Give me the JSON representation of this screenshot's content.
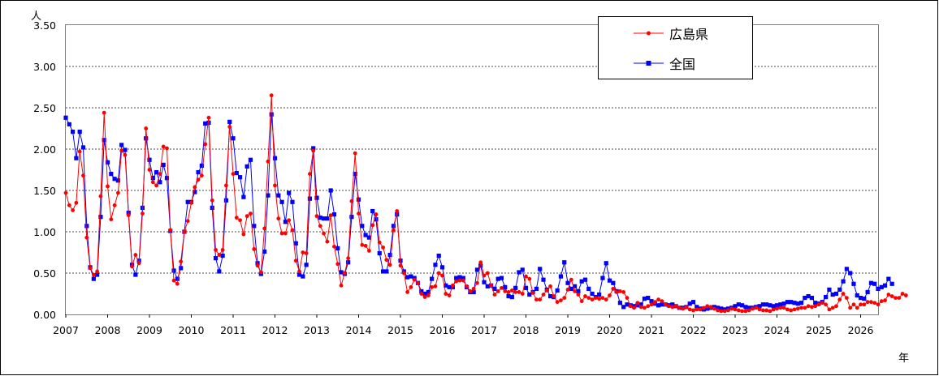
{
  "chart_data": {
    "type": "line",
    "y_unit_label": "人",
    "x_unit_label": "年",
    "ylim": [
      0,
      3.5
    ],
    "y_ticks": [
      "0.00",
      "0.50",
      "1.00",
      "1.50",
      "2.00",
      "2.50",
      "3.00",
      "3.50"
    ],
    "x_ticks": [
      "2007",
      "2008",
      "2009",
      "2010",
      "2011",
      "2012",
      "2013",
      "2014",
      "2015",
      "2016",
      "2017",
      "2018",
      "2019",
      "2020",
      "2021",
      "2022",
      "2023",
      "2024",
      "2025",
      "2026"
    ],
    "x_start": "2007-01",
    "grid": "horizontal dotted",
    "legend_position": "top-right",
    "series": [
      {
        "name": "広島県",
        "color": "#ff0000",
        "marker": "circle",
        "values": [
          1.47,
          1.32,
          1.26,
          1.35,
          1.97,
          1.68,
          0.93,
          0.56,
          0.48,
          0.52,
          1.43,
          2.44,
          1.55,
          1.15,
          1.32,
          1.47,
          1.98,
          1.93,
          1.2,
          0.58,
          0.72,
          0.62,
          1.22,
          2.25,
          1.75,
          1.6,
          1.56,
          1.7,
          2.03,
          2.01,
          1.02,
          0.41,
          0.37,
          0.64,
          1.0,
          1.13,
          1.35,
          1.54,
          1.63,
          1.68,
          2.06,
          2.38,
          1.38,
          0.78,
          0.72,
          0.78,
          1.56,
          2.27,
          1.7,
          1.17,
          1.14,
          0.97,
          1.19,
          1.22,
          0.79,
          0.59,
          0.51,
          1.04,
          1.85,
          2.65,
          1.56,
          1.16,
          0.98,
          0.98,
          1.14,
          1.02,
          0.65,
          0.52,
          0.75,
          0.74,
          1.7,
          1.98,
          1.19,
          1.07,
          0.98,
          0.88,
          1.2,
          0.82,
          0.61,
          0.35,
          0.5,
          0.68,
          1.37,
          1.95,
          1.22,
          0.84,
          0.83,
          0.77,
          1.08,
          1.21,
          0.87,
          0.81,
          0.66,
          0.6,
          1.02,
          1.25,
          0.59,
          0.5,
          0.27,
          0.33,
          0.42,
          0.38,
          0.25,
          0.21,
          0.23,
          0.33,
          0.34,
          0.5,
          0.47,
          0.25,
          0.23,
          0.35,
          0.4,
          0.41,
          0.41,
          0.34,
          0.28,
          0.31,
          0.38,
          0.63,
          0.47,
          0.5,
          0.35,
          0.24,
          0.28,
          0.32,
          0.28,
          0.27,
          0.29,
          0.27,
          0.27,
          0.25,
          0.46,
          0.43,
          0.26,
          0.18,
          0.18,
          0.24,
          0.29,
          0.34,
          0.22,
          0.15,
          0.17,
          0.2,
          0.3,
          0.42,
          0.28,
          0.24,
          0.16,
          0.22,
          0.2,
          0.18,
          0.2,
          0.19,
          0.2,
          0.18,
          0.23,
          0.31,
          0.27,
          0.28,
          0.27,
          0.2,
          0.1,
          0.08,
          0.14,
          0.09,
          0.08,
          0.1,
          0.12,
          0.15,
          0.18,
          0.16,
          0.12,
          0.1,
          0.09,
          0.1,
          0.08,
          0.07,
          0.09,
          0.06,
          0.05,
          0.06,
          0.06,
          0.08,
          0.1,
          0.09,
          0.07,
          0.05,
          0.04,
          0.04,
          0.05,
          0.07,
          0.06,
          0.05,
          0.04,
          0.04,
          0.05,
          0.07,
          0.08,
          0.06,
          0.05,
          0.05,
          0.04,
          0.06,
          0.07,
          0.08,
          0.08,
          0.06,
          0.05,
          0.06,
          0.07,
          0.08,
          0.08,
          0.1,
          0.09,
          0.1,
          0.12,
          0.14,
          0.12,
          0.06,
          0.08,
          0.1,
          0.18,
          0.25,
          0.2,
          0.08,
          0.12,
          0.08,
          0.12,
          0.12,
          0.15,
          0.15,
          0.14,
          0.12,
          0.16,
          0.17,
          0.24,
          0.22,
          0.2,
          0.2,
          0.25,
          0.23
        ]
      },
      {
        "name": "全国",
        "color": "#0000ff",
        "marker": "square",
        "values": [
          2.38,
          2.3,
          2.21,
          1.89,
          2.21,
          2.02,
          1.07,
          0.57,
          0.43,
          0.48,
          1.18,
          2.11,
          1.84,
          1.7,
          1.64,
          1.62,
          2.05,
          1.99,
          1.23,
          0.6,
          0.48,
          0.65,
          1.29,
          2.13,
          1.87,
          1.65,
          1.72,
          1.6,
          1.81,
          1.65,
          1.01,
          0.53,
          0.43,
          0.56,
          1.0,
          1.36,
          1.36,
          1.48,
          1.72,
          1.8,
          2.31,
          2.32,
          1.29,
          0.68,
          0.52,
          0.71,
          1.38,
          2.33,
          2.13,
          1.71,
          1.66,
          1.42,
          1.79,
          1.87,
          1.07,
          0.62,
          0.49,
          0.76,
          1.44,
          2.42,
          1.89,
          1.44,
          1.36,
          1.12,
          1.47,
          1.36,
          0.86,
          0.48,
          0.46,
          0.6,
          1.4,
          2.01,
          1.41,
          1.17,
          1.16,
          1.16,
          1.5,
          1.21,
          0.8,
          0.51,
          0.49,
          0.63,
          1.18,
          1.7,
          1.39,
          1.07,
          0.96,
          0.93,
          1.25,
          1.15,
          0.74,
          0.52,
          0.52,
          0.72,
          1.07,
          1.21,
          0.65,
          0.52,
          0.45,
          0.46,
          0.44,
          0.38,
          0.28,
          0.25,
          0.27,
          0.43,
          0.6,
          0.71,
          0.57,
          0.35,
          0.33,
          0.33,
          0.44,
          0.45,
          0.44,
          0.33,
          0.27,
          0.27,
          0.54,
          0.59,
          0.39,
          0.34,
          0.35,
          0.31,
          0.43,
          0.44,
          0.33,
          0.22,
          0.21,
          0.32,
          0.51,
          0.54,
          0.32,
          0.24,
          0.27,
          0.31,
          0.55,
          0.42,
          0.3,
          0.22,
          0.21,
          0.29,
          0.46,
          0.63,
          0.38,
          0.31,
          0.34,
          0.28,
          0.4,
          0.42,
          0.31,
          0.25,
          0.21,
          0.24,
          0.44,
          0.62,
          0.41,
          0.38,
          0.28,
          0.14,
          0.09,
          0.12,
          0.11,
          0.1,
          0.11,
          0.12,
          0.19,
          0.2,
          0.16,
          0.13,
          0.11,
          0.12,
          0.12,
          0.11,
          0.12,
          0.1,
          0.08,
          0.08,
          0.09,
          0.13,
          0.15,
          0.09,
          0.07,
          0.06,
          0.07,
          0.08,
          0.09,
          0.08,
          0.07,
          0.06,
          0.07,
          0.08,
          0.1,
          0.12,
          0.11,
          0.09,
          0.08,
          0.08,
          0.09,
          0.1,
          0.12,
          0.12,
          0.11,
          0.1,
          0.11,
          0.12,
          0.13,
          0.15,
          0.15,
          0.14,
          0.13,
          0.14,
          0.2,
          0.22,
          0.2,
          0.14,
          0.13,
          0.15,
          0.21,
          0.3,
          0.24,
          0.25,
          0.3,
          0.4,
          0.55,
          0.5,
          0.37,
          0.23,
          0.2,
          0.19,
          0.27,
          0.38,
          0.37,
          0.31,
          0.33,
          0.35,
          0.43,
          0.37
        ]
      }
    ]
  }
}
